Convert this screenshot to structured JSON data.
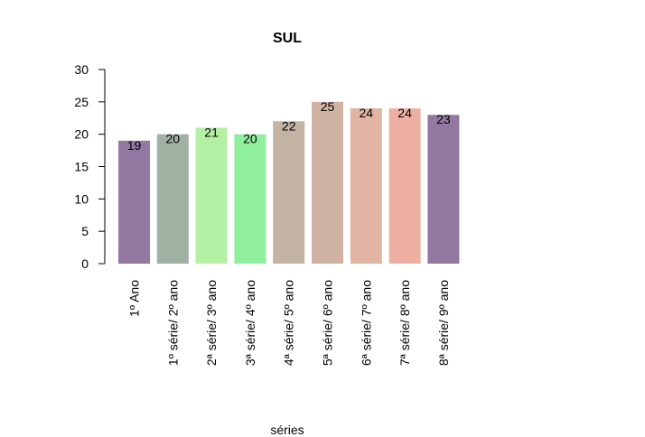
{
  "chart_data": {
    "type": "bar",
    "title": "SUL",
    "xlabel": "séries",
    "ylabel": "",
    "ylim": [
      0,
      30
    ],
    "yticks": [
      0,
      5,
      10,
      15,
      20,
      25,
      30
    ],
    "grid": false,
    "categories": [
      "1º Ano",
      "1º série/ 2º ano",
      "2ª série/ 3º ano",
      "3ª série/ 4º ano",
      "4ª série/ 5º ano",
      "5ª série/ 6º ano",
      "6ª série/ 7º ano",
      "7ª série/ 8º ano",
      "8ª série/ 9º ano"
    ],
    "values": [
      19,
      20,
      21,
      20,
      22,
      25,
      24,
      24,
      23
    ],
    "colors": [
      "#9378a2",
      "#a0b1a3",
      "#b3f0a3",
      "#90ef9d",
      "#c3b3a3",
      "#d0b2a3",
      "#e1b4a3",
      "#eeb0a3",
      "#9378a2"
    ]
  }
}
